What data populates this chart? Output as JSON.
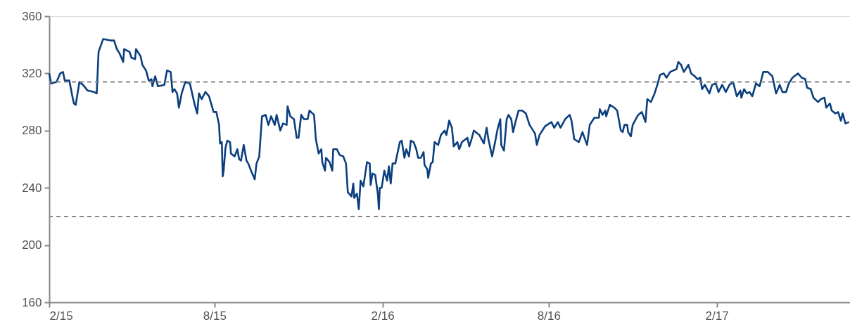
{
  "chart_data": {
    "type": "line",
    "x": [
      "2015-02-01",
      "2015-02-03",
      "2015-02-09",
      "2015-02-13",
      "2015-02-16",
      "2015-02-18",
      "2015-02-23",
      "2015-02-26",
      "2015-02-28",
      "2015-03-02",
      "2015-03-06",
      "2015-03-10",
      "2015-03-15",
      "2015-03-22",
      "2015-03-25",
      "2015-03-27",
      "2015-04-01",
      "2015-04-09",
      "2015-04-13",
      "2015-04-16",
      "2015-04-19",
      "2015-04-23",
      "2015-04-24",
      "2015-04-30",
      "2015-05-02",
      "2015-05-06",
      "2015-05-07",
      "2015-05-12",
      "2015-05-14",
      "2015-05-18",
      "2015-05-21",
      "2015-05-24",
      "2015-05-25",
      "2015-05-28",
      "2015-05-31",
      "2015-06-07",
      "2015-06-10",
      "2015-06-14",
      "2015-06-16",
      "2015-06-18",
      "2015-06-21",
      "2015-06-23",
      "2015-06-26",
      "2015-06-30",
      "2015-07-05",
      "2015-07-10",
      "2015-07-13",
      "2015-07-15",
      "2015-07-18",
      "2015-07-22",
      "2015-07-26",
      "2015-07-31",
      "2015-08-03",
      "2015-08-06",
      "2015-08-07",
      "2015-08-09",
      "2015-08-10",
      "2015-08-11",
      "2015-08-13",
      "2015-08-15",
      "2015-08-18",
      "2015-08-19",
      "2015-08-23",
      "2015-08-26",
      "2015-08-28",
      "2015-08-30",
      "2015-09-02",
      "2015-09-05",
      "2015-09-07",
      "2015-09-10",
      "2015-09-14",
      "2015-09-16",
      "2015-09-19",
      "2015-09-22",
      "2015-09-26",
      "2015-09-29",
      "2015-10-02",
      "2015-10-06",
      "2015-10-08",
      "2015-10-12",
      "2015-10-15",
      "2015-10-19",
      "2015-10-20",
      "2015-10-23",
      "2015-10-27",
      "2015-10-30",
      "2015-11-01",
      "2015-11-04",
      "2015-11-07",
      "2015-11-11",
      "2015-11-13",
      "2015-11-18",
      "2015-11-20",
      "2015-11-23",
      "2015-11-26",
      "2015-11-27",
      "2015-11-30",
      "2015-12-01",
      "2015-12-05",
      "2015-12-08",
      "2015-12-09",
      "2015-12-13",
      "2015-12-16",
      "2015-12-20",
      "2015-12-23",
      "2015-12-25",
      "2015-12-29",
      "2015-12-31",
      "2016-01-01",
      "2016-01-04",
      "2016-01-06",
      "2016-01-08",
      "2016-01-11",
      "2016-01-15",
      "2016-01-18",
      "2016-01-19",
      "2016-01-21",
      "2016-01-24",
      "2016-01-27",
      "2016-01-28",
      "2016-01-29",
      "2016-01-31",
      "2016-02-03",
      "2016-02-06",
      "2016-02-08",
      "2016-02-10",
      "2016-02-12",
      "2016-02-15",
      "2016-02-20",
      "2016-02-22",
      "2016-02-25",
      "2016-02-27",
      "2016-03-01",
      "2016-03-03",
      "2016-03-06",
      "2016-03-09",
      "2016-03-11",
      "2016-03-14",
      "2016-03-17",
      "2016-03-18",
      "2016-03-21",
      "2016-03-22",
      "2016-03-25",
      "2016-03-27",
      "2016-03-29",
      "2016-04-02",
      "2016-04-05",
      "2016-04-09",
      "2016-04-11",
      "2016-04-14",
      "2016-04-17",
      "2016-04-19",
      "2016-04-23",
      "2016-04-25",
      "2016-04-28",
      "2016-05-04",
      "2016-05-06",
      "2016-05-08",
      "2016-05-11",
      "2016-05-17",
      "2016-05-22",
      "2016-05-25",
      "2016-05-27",
      "2016-05-31",
      "2016-06-03",
      "2016-06-06",
      "2016-06-09",
      "2016-06-10",
      "2016-06-13",
      "2016-06-16",
      "2016-06-18",
      "2016-06-21",
      "2016-06-23",
      "2016-06-26",
      "2016-06-29",
      "2016-07-03",
      "2016-07-07",
      "2016-07-11",
      "2016-07-17",
      "2016-07-19",
      "2016-07-22",
      "2016-07-28",
      "2016-08-04",
      "2016-08-07",
      "2016-08-11",
      "2016-08-14",
      "2016-08-19",
      "2016-08-24",
      "2016-08-26",
      "2016-08-29",
      "2016-09-03",
      "2016-09-07",
      "2016-09-12",
      "2016-09-15",
      "2016-09-20",
      "2016-09-25",
      "2016-09-26",
      "2016-09-29",
      "2016-10-02",
      "2016-10-03",
      "2016-10-07",
      "2016-10-12",
      "2016-10-15",
      "2016-10-19",
      "2016-10-21",
      "2016-10-23",
      "2016-10-26",
      "2016-10-27",
      "2016-10-30",
      "2016-11-01",
      "2016-11-07",
      "2016-11-11",
      "2016-11-15",
      "2016-11-17",
      "2016-11-21",
      "2016-11-25",
      "2016-11-28",
      "2016-12-01",
      "2016-12-05",
      "2016-12-08",
      "2016-12-12",
      "2016-12-19",
      "2016-12-21",
      "2016-12-24",
      "2016-12-27",
      "2017-01-01",
      "2017-01-04",
      "2017-01-08",
      "2017-01-11",
      "2017-01-14",
      "2017-01-16",
      "2017-01-19",
      "2017-01-24",
      "2017-01-27",
      "2017-01-31",
      "2017-02-03",
      "2017-02-07",
      "2017-02-11",
      "2017-02-15",
      "2017-02-19",
      "2017-02-23",
      "2017-02-27",
      "2017-02-28",
      "2017-03-03",
      "2017-03-06",
      "2017-03-09",
      "2017-03-12",
      "2017-03-16",
      "2017-03-20",
      "2017-03-24",
      "2017-03-29",
      "2017-04-03",
      "2017-04-07",
      "2017-04-11",
      "2017-04-14",
      "2017-04-18",
      "2017-04-21",
      "2017-04-25",
      "2017-05-01",
      "2017-05-05",
      "2017-05-09",
      "2017-05-11",
      "2017-05-15",
      "2017-05-18",
      "2017-05-23",
      "2017-05-26",
      "2017-05-30",
      "2017-06-01",
      "2017-06-05",
      "2017-06-07",
      "2017-06-11",
      "2017-06-14",
      "2017-06-17",
      "2017-06-19",
      "2017-06-22",
      "2017-06-26"
    ],
    "series": [
      {
        "color": "#0b3f7e",
        "values": [
          320,
          313,
          314,
          320,
          321,
          315,
          315,
          305,
          299,
          298,
          314,
          312,
          308,
          307,
          306,
          335,
          344,
          343,
          343,
          337,
          334,
          328,
          337,
          335,
          331,
          330,
          337,
          332,
          326,
          322,
          315,
          316,
          311,
          318,
          311,
          312,
          322,
          321,
          307,
          309,
          306,
          296,
          306,
          314,
          313,
          299,
          292,
          306,
          302,
          307,
          304,
          293,
          293,
          284,
          271,
          272,
          248,
          252,
          268,
          273,
          272,
          264,
          262,
          267,
          260,
          259,
          270,
          259,
          257,
          252,
          246,
          257,
          262,
          290,
          291,
          284,
          290,
          284,
          291,
          280,
          285,
          284,
          297,
          290,
          288,
          275,
          275,
          291,
          288,
          288,
          294,
          291,
          274,
          264,
          267,
          258,
          252,
          261,
          258,
          252,
          267,
          267,
          263,
          262,
          257,
          237,
          234,
          243,
          233,
          236,
          225,
          245,
          241,
          258,
          257,
          242,
          250,
          249,
          235,
          225,
          240,
          240,
          252,
          245,
          255,
          243,
          257,
          257,
          272,
          273,
          261,
          267,
          262,
          273,
          272,
          267,
          261,
          261,
          265,
          256,
          253,
          247,
          257,
          258,
          272,
          270,
          277,
          280,
          277,
          287,
          282,
          269,
          272,
          267,
          272,
          275,
          269,
          273,
          280,
          277,
          271,
          282,
          274,
          262,
          271,
          281,
          288,
          270,
          266,
          288,
          291,
          288,
          279,
          287,
          294,
          294,
          292,
          284,
          278,
          270,
          277,
          283,
          286,
          282,
          286,
          282,
          288,
          291,
          287,
          274,
          272,
          279,
          270,
          284,
          289,
          289,
          295,
          291,
          294,
          290,
          298,
          296,
          294,
          280,
          279,
          284,
          284,
          279,
          276,
          284,
          291,
          293,
          286,
          302,
          300,
          306,
          312,
          319,
          320,
          317,
          321,
          323,
          328,
          326,
          321,
          326,
          320,
          318,
          316,
          317,
          309,
          312,
          306,
          312,
          313,
          307,
          312,
          307,
          312,
          314,
          304,
          308,
          303,
          309,
          306,
          307,
          304,
          313,
          311,
          321,
          321,
          318,
          306,
          312,
          307,
          307,
          313,
          317,
          320,
          317,
          316,
          310,
          309,
          303,
          300,
          302,
          303,
          296,
          299,
          294,
          292,
          293,
          287,
          292,
          285,
          286
        ]
      }
    ],
    "xlim": [
      "2015-02-01",
      "2017-06-27"
    ],
    "xticks": [
      {
        "value": "2015-02-01",
        "label": "2/15"
      },
      {
        "value": "2015-08-01",
        "label": "8/15"
      },
      {
        "value": "2016-02-01",
        "label": "2/16"
      },
      {
        "value": "2016-08-01",
        "label": "8/16"
      },
      {
        "value": "2017-02-01",
        "label": "2/17"
      }
    ],
    "ylim": [
      160,
      360
    ],
    "yticks": [
      160,
      200,
      240,
      280,
      320,
      360
    ],
    "ref_lines": [
      {
        "axis": "y",
        "value": 314,
        "color": "#888888",
        "line_style": "dashed"
      },
      {
        "axis": "y",
        "value": 220,
        "color": "#888888",
        "line_style": "dashed"
      }
    ],
    "grid": false,
    "marker": "none",
    "line_style": "solid"
  }
}
